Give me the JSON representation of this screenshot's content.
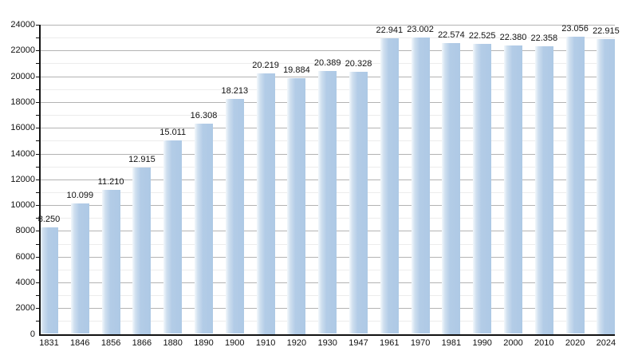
{
  "chart_data": {
    "type": "bar",
    "title": "",
    "xlabel": "",
    "ylabel": "",
    "categories": [
      "1831",
      "1846",
      "1856",
      "1866",
      "1880",
      "1890",
      "1900",
      "1910",
      "1920",
      "1930",
      "1947",
      "1961",
      "1970",
      "1981",
      "1990",
      "2000",
      "2010",
      "2020",
      "2024"
    ],
    "values": [
      8250,
      10099,
      11210,
      12915,
      15011,
      16308,
      18213,
      20219,
      19884,
      20389,
      20328,
      22941,
      23002,
      22574,
      22525,
      22380,
      22358,
      23056,
      22915
    ],
    "value_labels": [
      "8.250",
      "10.099",
      "11.210",
      "12.915",
      "15.011",
      "16.308",
      "18.213",
      "20.219",
      "19.884",
      "20.389",
      "20.328",
      "22.941",
      "23.002",
      "22.574",
      "22.525",
      "22.380",
      "22.358",
      "23.056",
      "22.915"
    ],
    "ylim": [
      0,
      24000
    ],
    "y_tick_labels": [
      "0",
      "2000",
      "4000",
      "6000",
      "8000",
      "10000",
      "12000",
      "14000",
      "16000",
      "18000",
      "20000",
      "22000",
      "24000"
    ],
    "ytick_step_major": 2000,
    "ytick_step_minor": 1000,
    "grid": true,
    "legend": false
  },
  "colors": {
    "bar_main": "#aec9e5",
    "bar_mid": "#b3cce7",
    "bar_light": "#cfdfef",
    "bar_edge": "#f3f8fc",
    "grid_major": "#b3b3b3",
    "grid_minor": "#ececec",
    "axis": "#111111",
    "label": "#111111",
    "background": "#ffffff"
  }
}
